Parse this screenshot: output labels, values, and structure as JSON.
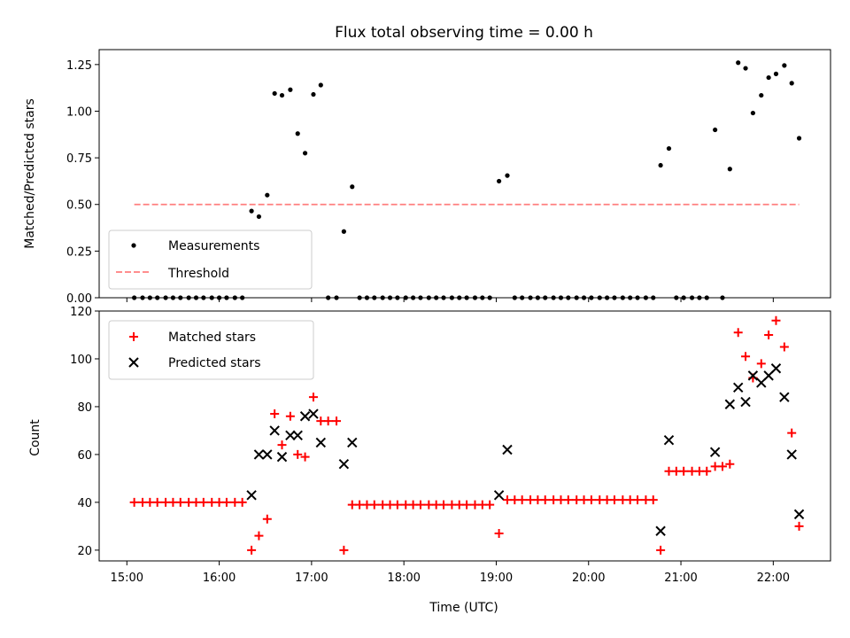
{
  "chart_data": [
    {
      "type": "scatter",
      "title": "Flux total observing time = 0.00 h",
      "ylabel": "Matched/Predicted stars",
      "xlabel": "",
      "ylim": [
        0,
        1.33
      ],
      "yticks": [
        "0.00",
        "0.25",
        "0.50",
        "0.75",
        "1.00",
        "1.25"
      ],
      "legend_position": "lower-left",
      "series": [
        {
          "name": "Measurements",
          "marker": "dot",
          "color": "#000000",
          "points": [
            [
              15.08,
              0
            ],
            [
              15.17,
              0
            ],
            [
              15.25,
              0
            ],
            [
              15.33,
              0
            ],
            [
              15.42,
              0
            ],
            [
              15.5,
              0
            ],
            [
              15.58,
              0
            ],
            [
              15.67,
              0
            ],
            [
              15.75,
              0
            ],
            [
              15.83,
              0
            ],
            [
              15.92,
              0
            ],
            [
              16.0,
              0
            ],
            [
              16.08,
              0
            ],
            [
              16.17,
              0
            ],
            [
              16.25,
              0
            ],
            [
              16.35,
              0.465
            ],
            [
              16.43,
              0.435
            ],
            [
              16.52,
              0.55
            ],
            [
              16.6,
              1.095
            ],
            [
              16.68,
              1.085
            ],
            [
              16.77,
              1.115
            ],
            [
              16.85,
              0.88
            ],
            [
              16.93,
              0.775
            ],
            [
              17.02,
              1.09
            ],
            [
              17.1,
              1.14
            ],
            [
              17.18,
              0
            ],
            [
              17.27,
              0
            ],
            [
              17.35,
              0.355
            ],
            [
              17.44,
              0.595
            ],
            [
              17.52,
              0
            ],
            [
              17.6,
              0
            ],
            [
              17.68,
              0
            ],
            [
              17.77,
              0
            ],
            [
              17.85,
              0
            ],
            [
              17.93,
              0
            ],
            [
              18.02,
              0
            ],
            [
              18.1,
              0
            ],
            [
              18.18,
              0
            ],
            [
              18.27,
              0
            ],
            [
              18.35,
              0
            ],
            [
              18.43,
              0
            ],
            [
              18.52,
              0
            ],
            [
              18.6,
              0
            ],
            [
              18.68,
              0
            ],
            [
              18.77,
              0
            ],
            [
              18.85,
              0
            ],
            [
              18.93,
              0
            ],
            [
              19.03,
              0.625
            ],
            [
              19.12,
              0.655
            ],
            [
              19.2,
              0
            ],
            [
              19.28,
              0
            ],
            [
              19.37,
              0
            ],
            [
              19.45,
              0
            ],
            [
              19.53,
              0
            ],
            [
              19.62,
              0
            ],
            [
              19.7,
              0
            ],
            [
              19.78,
              0
            ],
            [
              19.87,
              0
            ],
            [
              19.95,
              0
            ],
            [
              20.03,
              0
            ],
            [
              20.12,
              0
            ],
            [
              20.2,
              0
            ],
            [
              20.28,
              0
            ],
            [
              20.37,
              0
            ],
            [
              20.45,
              0
            ],
            [
              20.53,
              0
            ],
            [
              20.62,
              0
            ],
            [
              20.7,
              0
            ],
            [
              20.78,
              0.71
            ],
            [
              20.87,
              0.8
            ],
            [
              20.95,
              0
            ],
            [
              21.03,
              0
            ],
            [
              21.12,
              0
            ],
            [
              21.2,
              0
            ],
            [
              21.28,
              0
            ],
            [
              21.37,
              0.9
            ],
            [
              21.45,
              0
            ],
            [
              21.53,
              0.69
            ],
            [
              21.62,
              1.26
            ],
            [
              21.7,
              1.23
            ],
            [
              21.78,
              0.99
            ],
            [
              21.87,
              1.085
            ],
            [
              21.95,
              1.18
            ],
            [
              22.03,
              1.2
            ],
            [
              22.12,
              1.245
            ],
            [
              22.2,
              1.15
            ],
            [
              22.28,
              0.855
            ]
          ]
        },
        {
          "name": "Threshold",
          "marker": "dashed-line",
          "color": "#ff7f7f",
          "points": [
            [
              15.08,
              0.5
            ],
            [
              22.28,
              0.5
            ]
          ]
        }
      ]
    },
    {
      "type": "scatter",
      "title": "",
      "xlabel": "Time (UTC)",
      "ylabel": "Count",
      "xlim": [
        14.7,
        22.62
      ],
      "ylim": [
        15.5,
        120
      ],
      "xticks": [
        "15:00",
        "16:00",
        "17:00",
        "18:00",
        "19:00",
        "20:00",
        "21:00",
        "22:00"
      ],
      "yticks": [
        "20",
        "40",
        "60",
        "80",
        "100",
        "120"
      ],
      "legend_position": "upper-left",
      "series": [
        {
          "name": "Matched stars",
          "marker": "plus",
          "color": "#ff0000",
          "points": [
            [
              15.08,
              40
            ],
            [
              15.17,
              40
            ],
            [
              15.25,
              40
            ],
            [
              15.33,
              40
            ],
            [
              15.42,
              40
            ],
            [
              15.5,
              40
            ],
            [
              15.58,
              40
            ],
            [
              15.67,
              40
            ],
            [
              15.75,
              40
            ],
            [
              15.83,
              40
            ],
            [
              15.92,
              40
            ],
            [
              16.0,
              40
            ],
            [
              16.08,
              40
            ],
            [
              16.17,
              40
            ],
            [
              16.25,
              40
            ],
            [
              16.35,
              20
            ],
            [
              16.43,
              26
            ],
            [
              16.52,
              33
            ],
            [
              16.6,
              77
            ],
            [
              16.68,
              64
            ],
            [
              16.77,
              76
            ],
            [
              16.85,
              60
            ],
            [
              16.93,
              59
            ],
            [
              17.02,
              84
            ],
            [
              17.1,
              74
            ],
            [
              17.18,
              74
            ],
            [
              17.27,
              74
            ],
            [
              17.35,
              20
            ],
            [
              17.44,
              39
            ],
            [
              17.52,
              39
            ],
            [
              17.6,
              39
            ],
            [
              17.68,
              39
            ],
            [
              17.77,
              39
            ],
            [
              17.85,
              39
            ],
            [
              17.93,
              39
            ],
            [
              18.02,
              39
            ],
            [
              18.1,
              39
            ],
            [
              18.18,
              39
            ],
            [
              18.27,
              39
            ],
            [
              18.35,
              39
            ],
            [
              18.43,
              39
            ],
            [
              18.52,
              39
            ],
            [
              18.6,
              39
            ],
            [
              18.68,
              39
            ],
            [
              18.77,
              39
            ],
            [
              18.85,
              39
            ],
            [
              18.93,
              39
            ],
            [
              19.03,
              27
            ],
            [
              19.12,
              41
            ],
            [
              19.2,
              41
            ],
            [
              19.28,
              41
            ],
            [
              19.37,
              41
            ],
            [
              19.45,
              41
            ],
            [
              19.53,
              41
            ],
            [
              19.62,
              41
            ],
            [
              19.7,
              41
            ],
            [
              19.78,
              41
            ],
            [
              19.87,
              41
            ],
            [
              19.95,
              41
            ],
            [
              20.03,
              41
            ],
            [
              20.12,
              41
            ],
            [
              20.2,
              41
            ],
            [
              20.28,
              41
            ],
            [
              20.37,
              41
            ],
            [
              20.45,
              41
            ],
            [
              20.53,
              41
            ],
            [
              20.62,
              41
            ],
            [
              20.7,
              41
            ],
            [
              20.78,
              20
            ],
            [
              20.87,
              53
            ],
            [
              20.95,
              53
            ],
            [
              21.03,
              53
            ],
            [
              21.12,
              53
            ],
            [
              21.2,
              53
            ],
            [
              21.28,
              53
            ],
            [
              21.37,
              55
            ],
            [
              21.45,
              55
            ],
            [
              21.53,
              56
            ],
            [
              21.62,
              111
            ],
            [
              21.7,
              101
            ],
            [
              21.78,
              92
            ],
            [
              21.87,
              98
            ],
            [
              21.95,
              110
            ],
            [
              22.03,
              116
            ],
            [
              22.12,
              105
            ],
            [
              22.2,
              69
            ],
            [
              22.28,
              30
            ]
          ]
        },
        {
          "name": "Predicted stars",
          "marker": "x",
          "color": "#000000",
          "points": [
            [
              16.35,
              43
            ],
            [
              16.43,
              60
            ],
            [
              16.52,
              60
            ],
            [
              16.6,
              70
            ],
            [
              16.68,
              59
            ],
            [
              16.77,
              68
            ],
            [
              16.85,
              68
            ],
            [
              16.93,
              76
            ],
            [
              17.02,
              77
            ],
            [
              17.1,
              65
            ],
            [
              17.35,
              56
            ],
            [
              17.44,
              65
            ],
            [
              19.03,
              43
            ],
            [
              19.12,
              62
            ],
            [
              20.78,
              28
            ],
            [
              20.87,
              66
            ],
            [
              21.37,
              61
            ],
            [
              21.53,
              81
            ],
            [
              21.62,
              88
            ],
            [
              21.7,
              82
            ],
            [
              21.78,
              93
            ],
            [
              21.87,
              90
            ],
            [
              21.95,
              93
            ],
            [
              22.03,
              96
            ],
            [
              22.12,
              84
            ],
            [
              22.2,
              60
            ],
            [
              22.28,
              35
            ]
          ]
        }
      ]
    }
  ]
}
